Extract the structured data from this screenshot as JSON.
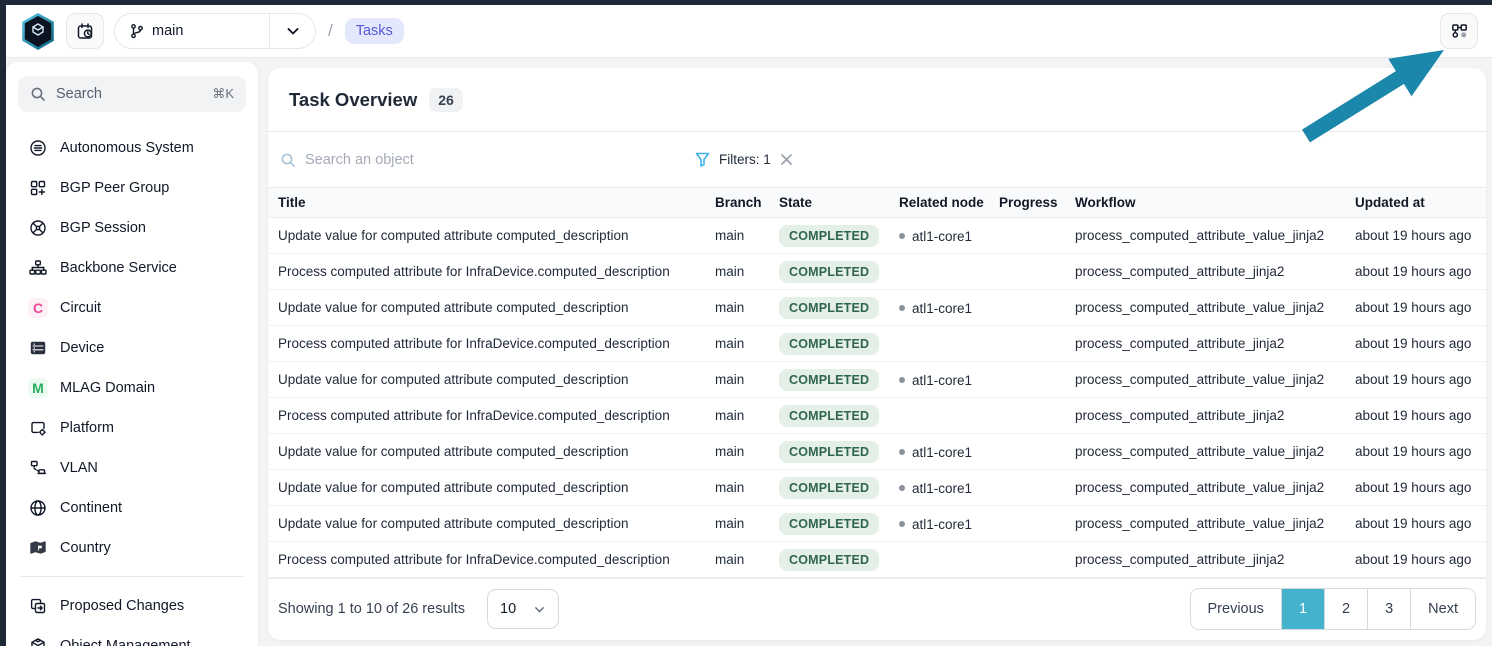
{
  "topbar": {
    "branch": {
      "label": "main"
    },
    "breadcrumb": {
      "separator": "/",
      "current": "Tasks"
    }
  },
  "sidebar": {
    "search": {
      "placeholder": "Search",
      "shortcut": "⌘K"
    },
    "items": [
      {
        "label": "Autonomous System",
        "icon": "autonomous-system"
      },
      {
        "label": "BGP Peer Group",
        "icon": "bgp-peer-group"
      },
      {
        "label": "BGP Session",
        "icon": "bgp-session"
      },
      {
        "label": "Backbone Service",
        "icon": "backbone-service"
      },
      {
        "label": "Circuit",
        "icon": "letter",
        "letter": "C",
        "color": "#ec4899"
      },
      {
        "label": "Device",
        "icon": "device"
      },
      {
        "label": "MLAG Domain",
        "icon": "letter",
        "letter": "M",
        "color": "#27ae60"
      },
      {
        "label": "Platform",
        "icon": "platform"
      },
      {
        "label": "VLAN",
        "icon": "vlan"
      },
      {
        "label": "Continent",
        "icon": "continent"
      },
      {
        "label": "Country",
        "icon": "country"
      }
    ],
    "footer_items": [
      {
        "label": "Proposed Changes",
        "icon": "proposed-changes"
      },
      {
        "label": "Object Management",
        "icon": "object-management"
      }
    ]
  },
  "main": {
    "title": "Task Overview",
    "count": "26",
    "toolbar": {
      "search_placeholder": "Search an object",
      "filters_label": "Filters: 1"
    },
    "table": {
      "columns": [
        "Title",
        "Branch",
        "State",
        "Related node",
        "Progress",
        "Workflow",
        "Updated at"
      ],
      "rows": [
        {
          "title": "Update value for computed attribute computed_description",
          "branch": "main",
          "state": "COMPLETED",
          "related_node": "atl1-core1",
          "progress": "",
          "workflow": "process_computed_attribute_value_jinja2",
          "updated": "about 19 hours ago"
        },
        {
          "title": "Process computed attribute for InfraDevice.computed_description",
          "branch": "main",
          "state": "COMPLETED",
          "related_node": "",
          "progress": "",
          "workflow": "process_computed_attribute_jinja2",
          "updated": "about 19 hours ago"
        },
        {
          "title": "Update value for computed attribute computed_description",
          "branch": "main",
          "state": "COMPLETED",
          "related_node": "atl1-core1",
          "progress": "",
          "workflow": "process_computed_attribute_value_jinja2",
          "updated": "about 19 hours ago"
        },
        {
          "title": "Process computed attribute for InfraDevice.computed_description",
          "branch": "main",
          "state": "COMPLETED",
          "related_node": "",
          "progress": "",
          "workflow": "process_computed_attribute_jinja2",
          "updated": "about 19 hours ago"
        },
        {
          "title": "Update value for computed attribute computed_description",
          "branch": "main",
          "state": "COMPLETED",
          "related_node": "atl1-core1",
          "progress": "",
          "workflow": "process_computed_attribute_value_jinja2",
          "updated": "about 19 hours ago"
        },
        {
          "title": "Process computed attribute for InfraDevice.computed_description",
          "branch": "main",
          "state": "COMPLETED",
          "related_node": "",
          "progress": "",
          "workflow": "process_computed_attribute_jinja2",
          "updated": "about 19 hours ago"
        },
        {
          "title": "Update value for computed attribute computed_description",
          "branch": "main",
          "state": "COMPLETED",
          "related_node": "atl1-core1",
          "progress": "",
          "workflow": "process_computed_attribute_value_jinja2",
          "updated": "about 19 hours ago"
        },
        {
          "title": "Update value for computed attribute computed_description",
          "branch": "main",
          "state": "COMPLETED",
          "related_node": "atl1-core1",
          "progress": "",
          "workflow": "process_computed_attribute_value_jinja2",
          "updated": "about 19 hours ago"
        },
        {
          "title": "Update value for computed attribute computed_description",
          "branch": "main",
          "state": "COMPLETED",
          "related_node": "atl1-core1",
          "progress": "",
          "workflow": "process_computed_attribute_value_jinja2",
          "updated": "about 19 hours ago"
        },
        {
          "title": "Process computed attribute for InfraDevice.computed_description",
          "branch": "main",
          "state": "COMPLETED",
          "related_node": "",
          "progress": "",
          "workflow": "process_computed_attribute_jinja2",
          "updated": "about 19 hours ago"
        }
      ]
    },
    "footer": {
      "summary": "Showing 1 to 10 of 26 results",
      "page_size": "10",
      "pagination": {
        "previous": "Previous",
        "pages": [
          "1",
          "2",
          "3"
        ],
        "active_page": "1",
        "next": "Next"
      }
    }
  },
  "colors": {
    "accent_teal": "#44b1cd",
    "annotation_arrow": "#1b87ab",
    "state_completed_bg": "#e4efe7",
    "state_completed_text": "#2f664c",
    "breadcrumb_bg": "#e4e8fd",
    "breadcrumb_text": "#5558d9",
    "filter_funnel": "#3db3e8"
  }
}
